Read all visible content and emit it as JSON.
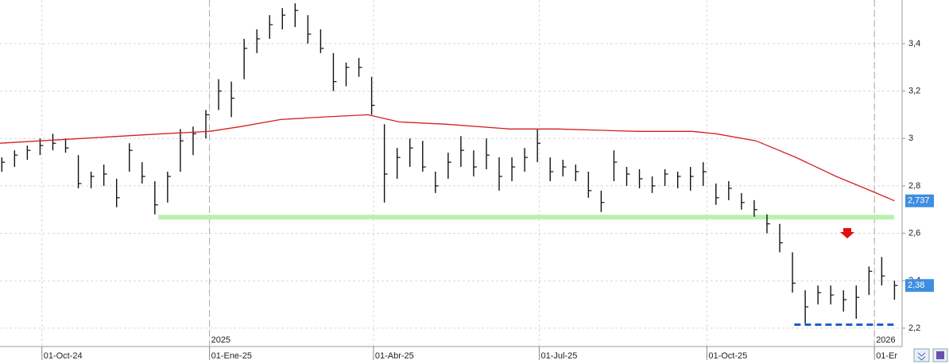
{
  "chart_data": {
    "type": "ohlc",
    "x": [
      "2024-09-09",
      "2024-09-16",
      "2024-09-23",
      "2024-09-30",
      "2024-10-07",
      "2024-10-14",
      "2024-10-21",
      "2024-10-28",
      "2024-11-04",
      "2024-11-11",
      "2024-11-18",
      "2024-11-25",
      "2024-12-02",
      "2024-12-09",
      "2024-12-16",
      "2024-12-23",
      "2024-12-30",
      "2025-01-06",
      "2025-01-13",
      "2025-01-20",
      "2025-01-27",
      "2025-02-03",
      "2025-02-10",
      "2025-02-17",
      "2025-02-24",
      "2025-03-03",
      "2025-03-10",
      "2025-03-17",
      "2025-03-24",
      "2025-03-31",
      "2025-04-07",
      "2025-04-14",
      "2025-04-21",
      "2025-04-28",
      "2025-05-05",
      "2025-05-12",
      "2025-05-19",
      "2025-05-26",
      "2025-06-02",
      "2025-06-09",
      "2025-06-16",
      "2025-06-23",
      "2025-06-30",
      "2025-07-07",
      "2025-07-14",
      "2025-07-21",
      "2025-07-28",
      "2025-08-04",
      "2025-08-11",
      "2025-08-18",
      "2025-08-25",
      "2025-09-01",
      "2025-09-08",
      "2025-09-15",
      "2025-09-22",
      "2025-09-29",
      "2025-10-06",
      "2025-10-13",
      "2025-10-20",
      "2025-10-27",
      "2025-11-03",
      "2025-11-10",
      "2025-11-17",
      "2025-11-24",
      "2025-12-01",
      "2025-12-08",
      "2025-12-15",
      "2025-12-22",
      "2025-12-29",
      "2026-01-05",
      "2026-01-12"
    ],
    "high": [
      2.92,
      2.95,
      2.97,
      3.0,
      3.02,
      3.0,
      2.93,
      2.86,
      2.89,
      2.83,
      2.98,
      2.9,
      2.82,
      2.86,
      3.04,
      3.05,
      3.12,
      3.25,
      3.24,
      3.42,
      3.46,
      3.52,
      3.55,
      3.57,
      3.52,
      3.46,
      3.36,
      3.32,
      3.34,
      3.26,
      3.06,
      2.96,
      3.0,
      2.99,
      2.86,
      2.94,
      3.01,
      2.95,
      3.0,
      2.92,
      2.92,
      2.96,
      3.04,
      2.92,
      2.91,
      2.89,
      2.86,
      2.78,
      2.95,
      2.88,
      2.87,
      2.84,
      2.87,
      2.86,
      2.88,
      2.9,
      2.81,
      2.82,
      2.77,
      2.74,
      2.68,
      2.64,
      2.52,
      2.36,
      2.38,
      2.38,
      2.36,
      2.38,
      2.46,
      2.5,
      2.4
    ],
    "low": [
      2.86,
      2.88,
      2.91,
      2.93,
      2.95,
      2.94,
      2.79,
      2.79,
      2.8,
      2.71,
      2.86,
      2.81,
      2.68,
      2.73,
      2.86,
      2.93,
      3.0,
      3.12,
      3.09,
      3.25,
      3.36,
      3.42,
      3.46,
      3.47,
      3.4,
      3.36,
      3.2,
      3.22,
      3.26,
      3.1,
      2.73,
      2.83,
      2.88,
      2.86,
      2.77,
      2.83,
      2.88,
      2.84,
      2.87,
      2.78,
      2.82,
      2.86,
      2.9,
      2.82,
      2.84,
      2.82,
      2.75,
      2.69,
      2.82,
      2.8,
      2.79,
      2.77,
      2.8,
      2.79,
      2.78,
      2.8,
      2.72,
      2.74,
      2.7,
      2.67,
      2.6,
      2.52,
      2.35,
      2.22,
      2.3,
      2.3,
      2.27,
      2.24,
      2.34,
      2.38,
      2.32
    ],
    "close": [
      2.9,
      2.93,
      2.95,
      2.97,
      2.98,
      2.96,
      2.81,
      2.84,
      2.85,
      2.75,
      2.95,
      2.84,
      2.72,
      2.84,
      2.99,
      3.02,
      3.1,
      3.2,
      3.17,
      3.38,
      3.42,
      3.48,
      3.52,
      3.54,
      3.44,
      3.38,
      3.24,
      3.3,
      3.3,
      3.14,
      2.85,
      2.92,
      2.96,
      2.88,
      2.8,
      2.9,
      2.95,
      2.88,
      2.93,
      2.84,
      2.88,
      2.92,
      2.98,
      2.86,
      2.88,
      2.86,
      2.78,
      2.73,
      2.9,
      2.85,
      2.83,
      2.8,
      2.85,
      2.84,
      2.84,
      2.86,
      2.75,
      2.79,
      2.73,
      2.7,
      2.64,
      2.56,
      2.39,
      2.29,
      2.35,
      2.34,
      2.32,
      2.33,
      2.44,
      2.42,
      2.38
    ],
    "color": "#111111",
    "moving_average": {
      "color": "#d42020",
      "x": [
        "2024-09-08",
        "2024-10-23",
        "2024-12-06",
        "2025-01-01",
        "2025-01-18",
        "2025-02-09",
        "2025-03-03",
        "2025-03-29",
        "2025-04-15",
        "2025-05-11",
        "2025-06-15",
        "2025-07-11",
        "2025-08-24",
        "2025-09-23",
        "2025-10-06",
        "2025-10-28",
        "2025-11-19",
        "2025-12-11",
        "2026-01-02",
        "2026-01-12"
      ],
      "values": [
        2.98,
        3.0,
        3.02,
        3.03,
        3.05,
        3.08,
        3.09,
        3.1,
        3.07,
        3.06,
        3.04,
        3.04,
        3.03,
        3.03,
        3.02,
        2.99,
        2.92,
        2.84,
        2.77,
        2.737
      ]
    },
    "levels": [
      {
        "value": 2.668,
        "from": "2024-12-04",
        "color": "#b8f2ae"
      },
      {
        "value": 2.215,
        "from": "2025-11-18",
        "color": "#1f5fc8"
      }
    ],
    "price_labels": [
      {
        "value": 2.737,
        "label": "2,737"
      },
      {
        "value": 2.38,
        "label": "2,38"
      }
    ],
    "xlim": [
      "2024-09-08",
      "2026-01-14"
    ],
    "xticks": [
      {
        "value": "2024-10-01",
        "label": "01-Oct-24"
      },
      {
        "value": "2025-01-01",
        "label": "01-Ene-25"
      },
      {
        "value": "2025-04-01",
        "label": "01-Abr-25"
      },
      {
        "value": "2025-07-01",
        "label": "01-Jul-25"
      },
      {
        "value": "2025-10-01",
        "label": "01-Oct-25"
      },
      {
        "value": "2026-01-01",
        "label": "01-Er"
      }
    ],
    "year_markers": [
      {
        "value": "2025-01-01",
        "label": "2025"
      },
      {
        "value": "2026-01-01",
        "label": "2026"
      }
    ],
    "ylim": [
      2.126,
      3.584
    ],
    "yticks": [
      {
        "value": 2.2,
        "label": "2,2"
      },
      {
        "value": 2.4,
        "label": "2,4"
      },
      {
        "value": 2.6,
        "label": "2,6"
      },
      {
        "value": 2.8,
        "label": "2,8"
      },
      3,
      {
        "value": 3.2,
        "label": "3,2"
      },
      {
        "value": 3.4,
        "label": "3,4"
      }
    ],
    "grid": true
  }
}
